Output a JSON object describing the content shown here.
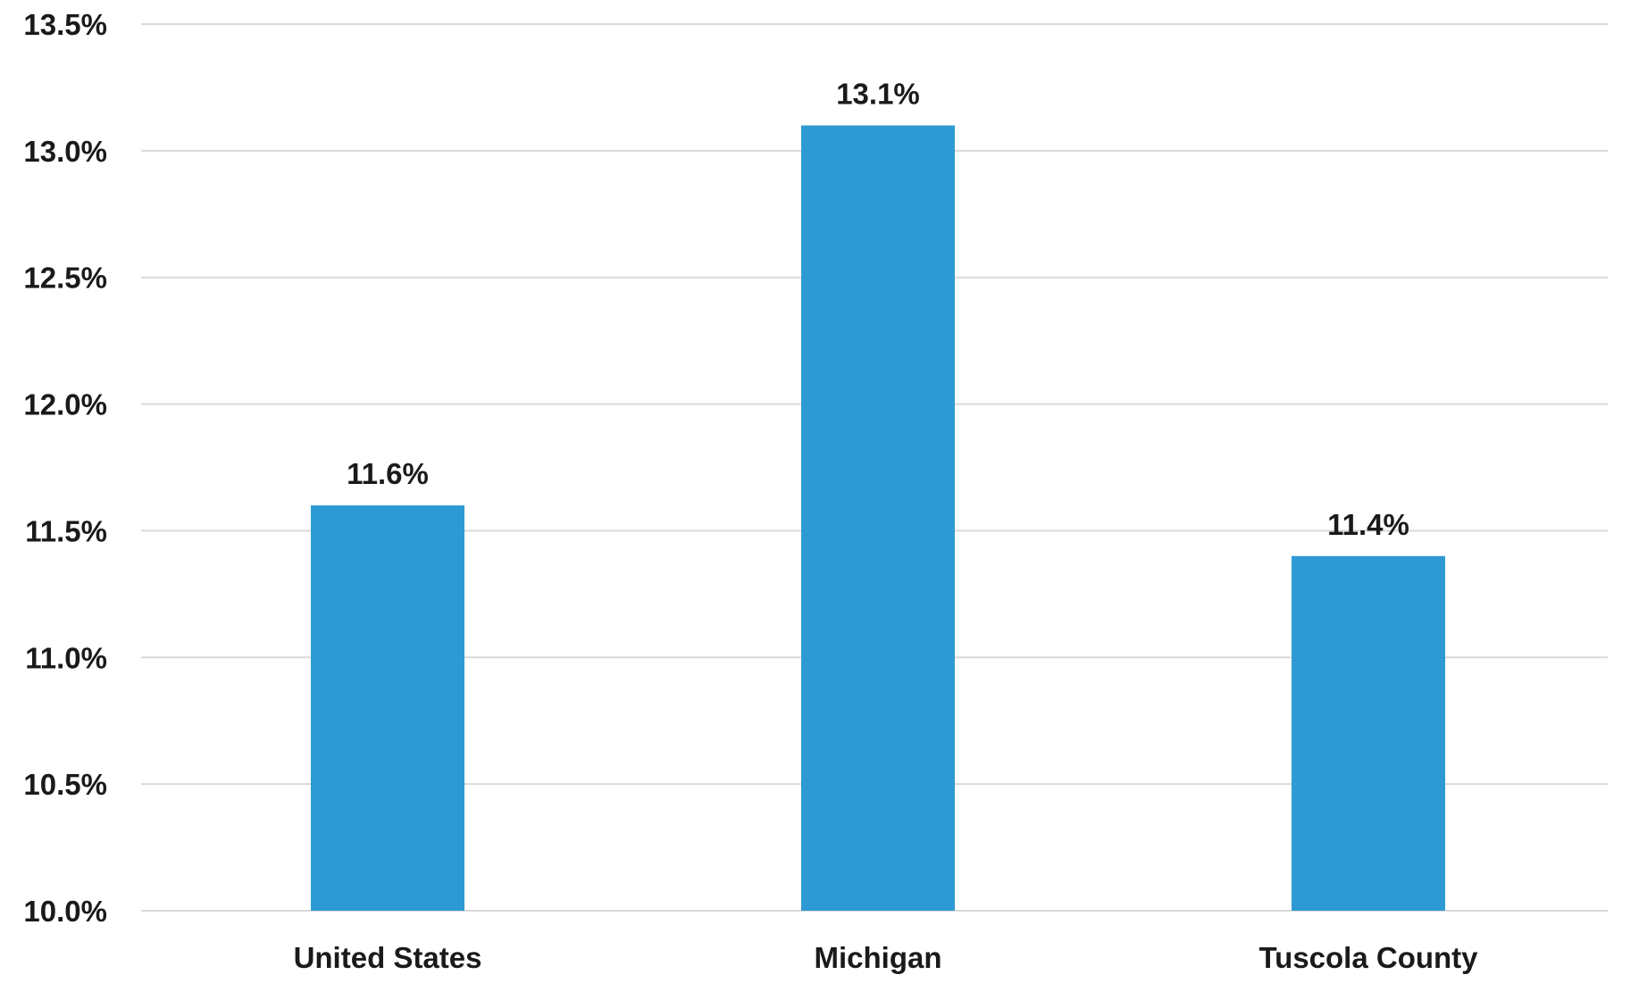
{
  "chart_data": {
    "type": "bar",
    "categories": [
      "United States",
      "Michigan",
      "Tuscola County"
    ],
    "values": [
      11.6,
      13.1,
      11.4
    ],
    "data_labels": [
      "11.6%",
      "13.1%",
      "11.4%"
    ],
    "title": "",
    "xlabel": "",
    "ylabel": "",
    "ylim": [
      10.0,
      13.5
    ],
    "yticks": [
      10.0,
      10.5,
      11.0,
      11.5,
      12.0,
      12.5,
      13.0,
      13.5
    ],
    "ytick_labels": [
      "10.0%",
      "10.5%",
      "11.0%",
      "11.5%",
      "12.0%",
      "12.5%",
      "13.0%",
      "13.5%"
    ],
    "grid": true,
    "legend": "none",
    "bar_color": "#2e9ad3",
    "grid_color": "#d9d9d9"
  }
}
